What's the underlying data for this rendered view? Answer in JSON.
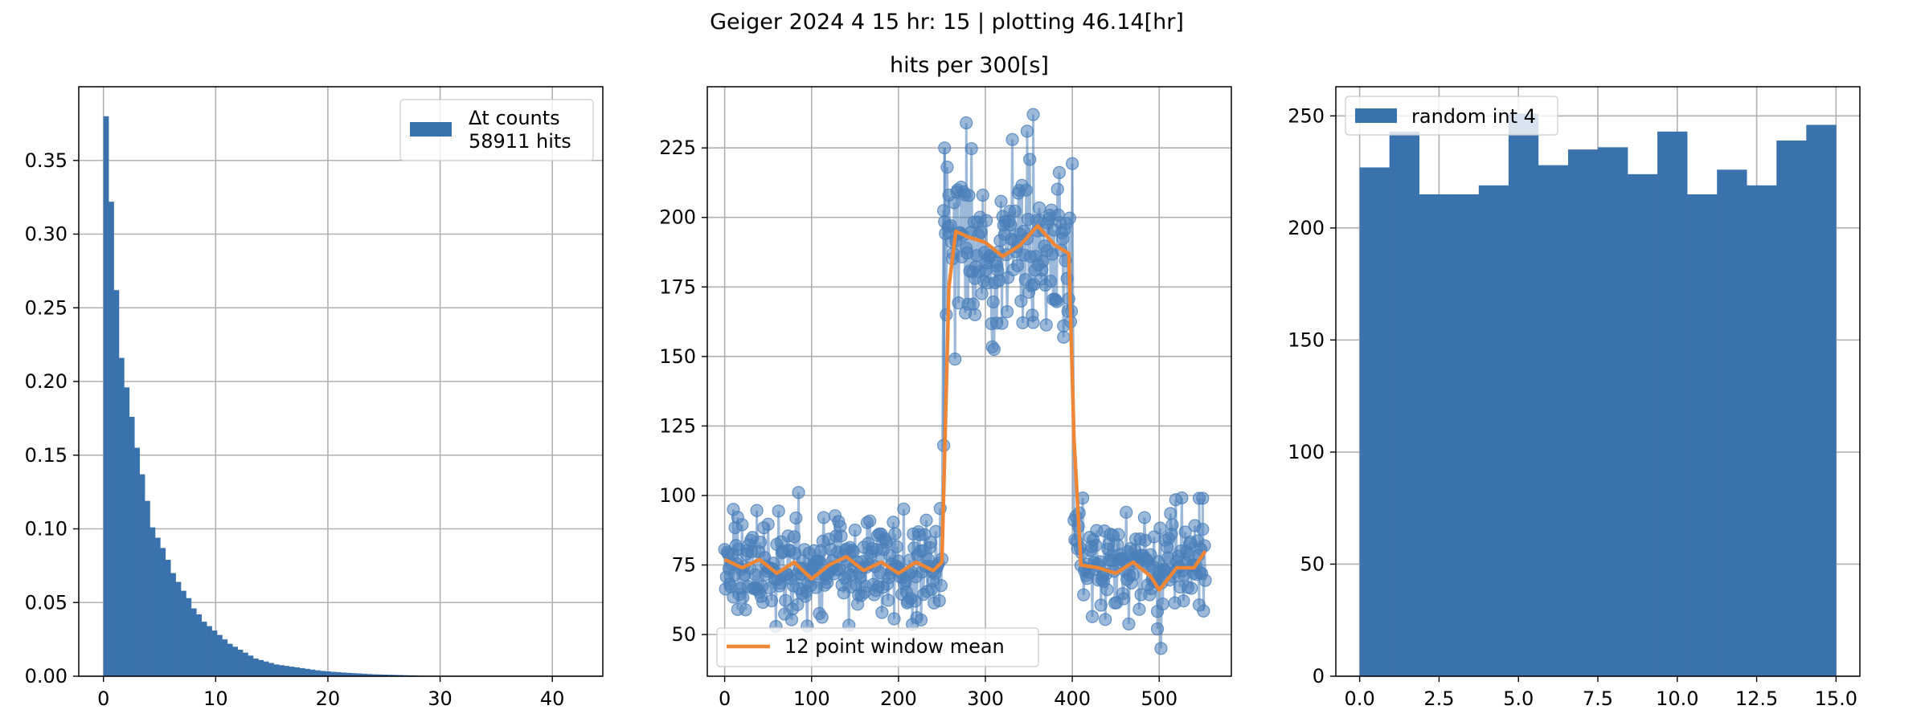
{
  "suptitle": "Geiger 2024 4 15 hr: 15 | plotting 46.14[hr]",
  "colors": {
    "bar": "#3a72ae",
    "marker": "#4a7fba",
    "mean": "#ef8636",
    "grid": "#b0b0b0",
    "axes": "#000000"
  },
  "chart_data": [
    {
      "type": "bar",
      "title": "",
      "xlabel": "",
      "ylabel": "",
      "xlim": [
        -2.2,
        44.5
      ],
      "ylim": [
        0,
        0.4
      ],
      "xticks": [
        0,
        10,
        20,
        30,
        40
      ],
      "xtick_labels": [
        "0",
        "10",
        "20",
        "30",
        "40"
      ],
      "yticks": [
        0,
        0.05,
        0.1,
        0.15,
        0.2,
        0.25,
        0.3,
        0.35
      ],
      "ytick_labels": [
        "0.00",
        "0.05",
        "0.10",
        "0.15",
        "0.20",
        "0.25",
        "0.30",
        "0.35"
      ],
      "grid": true,
      "legend": {
        "position": "upper right",
        "entries": [
          "Δt counts\n58911 hits"
        ]
      },
      "bin_width": 0.46,
      "bin_start": 0,
      "values": [
        0.38,
        0.322,
        0.262,
        0.216,
        0.196,
        0.176,
        0.155,
        0.137,
        0.119,
        0.101,
        0.094,
        0.087,
        0.079,
        0.07,
        0.064,
        0.058,
        0.053,
        0.046,
        0.042,
        0.037,
        0.034,
        0.031,
        0.028,
        0.025,
        0.022,
        0.02,
        0.018,
        0.016,
        0.014,
        0.012,
        0.011,
        0.01,
        0.009,
        0.008,
        0.0075,
        0.007,
        0.0065,
        0.006,
        0.0055,
        0.005,
        0.0045,
        0.004,
        0.0036,
        0.0033,
        0.003,
        0.0028,
        0.0025,
        0.0023,
        0.0021,
        0.0019,
        0.0017,
        0.0015,
        0.0013,
        0.0012,
        0.0011,
        0.001,
        0.0009,
        0.0008,
        0.0007,
        0.0006,
        0.0005,
        0.0004,
        0.0003,
        0.0002,
        0.0001
      ]
    },
    {
      "type": "line",
      "title": "hits per 300[s]",
      "xlabel": "",
      "ylabel": "",
      "xlim": [
        -20,
        583
      ],
      "ylim": [
        35,
        247
      ],
      "xticks": [
        0,
        100,
        200,
        300,
        400,
        500
      ],
      "xtick_labels": [
        "0",
        "100",
        "200",
        "300",
        "400",
        "500"
      ],
      "yticks": [
        50,
        75,
        100,
        125,
        150,
        175,
        200,
        225
      ],
      "ytick_labels": [
        "50",
        "75",
        "100",
        "125",
        "150",
        "175",
        "200",
        "225"
      ],
      "grid": true,
      "legend": {
        "position": "lower left",
        "entries": [
          "12 point window mean"
        ]
      },
      "segments": [
        {
          "x_start": 0,
          "x_end": 250,
          "base": 74,
          "spread": 17,
          "seed": 11
        },
        {
          "x_start": 252,
          "x_end": 400,
          "base": 189,
          "spread": 30,
          "seed": 23
        },
        {
          "x_start": 402,
          "x_end": 553,
          "base": 76,
          "spread": 17,
          "seed": 37
        }
      ],
      "highlights": [
        {
          "x": 10,
          "y": 95
        },
        {
          "x": 15,
          "y": 59
        },
        {
          "x": 253,
          "y": 225
        },
        {
          "x": 252,
          "y": 118
        },
        {
          "x": 278,
          "y": 234
        },
        {
          "x": 288,
          "y": 165
        },
        {
          "x": 313,
          "y": 162
        },
        {
          "x": 355,
          "y": 237
        },
        {
          "x": 348,
          "y": 231
        },
        {
          "x": 390,
          "y": 161
        },
        {
          "x": 498,
          "y": 52
        },
        {
          "x": 502,
          "y": 45
        },
        {
          "x": 546,
          "y": 99
        },
        {
          "x": 550,
          "y": 99
        }
      ],
      "mean_series": {
        "name": "12 point window mean",
        "x": [
          0,
          20,
          40,
          60,
          80,
          100,
          120,
          140,
          160,
          180,
          200,
          220,
          240,
          250,
          258,
          266,
          280,
          300,
          320,
          340,
          360,
          380,
          396,
          402,
          410,
          430,
          450,
          470,
          490,
          500,
          520,
          540,
          553
        ],
        "y": [
          77,
          74,
          77,
          72,
          76,
          70,
          75,
          78,
          73,
          76,
          72,
          76,
          73,
          76,
          175,
          195,
          193,
          191,
          186,
          190,
          197,
          190,
          187,
          120,
          75,
          74,
          72,
          76,
          71,
          66,
          74,
          74,
          80
        ]
      }
    },
    {
      "type": "bar",
      "title": "",
      "xlabel": "",
      "ylabel": "",
      "xlim": [
        -0.75,
        15.75
      ],
      "ylim": [
        0,
        263
      ],
      "xticks": [
        0,
        2.5,
        5,
        7.5,
        10,
        12.5,
        15
      ],
      "xtick_labels": [
        "0.0",
        "2.5",
        "5.0",
        "7.5",
        "10.0",
        "12.5",
        "15.0"
      ],
      "yticks": [
        0,
        50,
        100,
        150,
        200,
        250
      ],
      "ytick_labels": [
        "0",
        "50",
        "100",
        "150",
        "200",
        "250"
      ],
      "grid": true,
      "legend": {
        "position": "upper left",
        "entries": [
          "random int 4"
        ]
      },
      "bin_width": 0.9375,
      "bin_start": 0,
      "values": [
        227,
        243,
        215,
        215,
        219,
        251,
        228,
        235,
        236,
        224,
        243,
        215,
        226,
        219,
        239,
        246
      ]
    }
  ]
}
